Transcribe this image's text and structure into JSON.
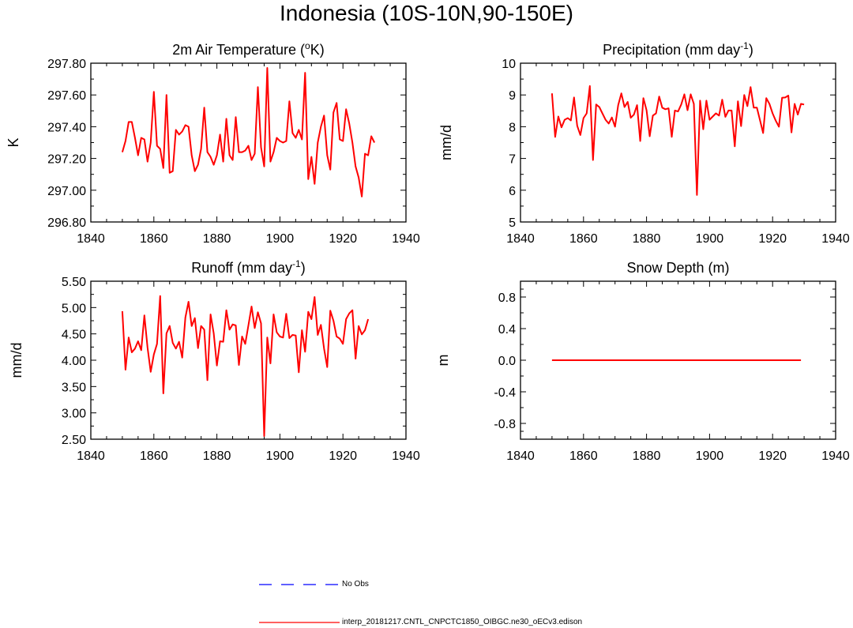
{
  "title": "Indonesia (10S-10N,90-150E)",
  "colors": {
    "model": "#ff0000",
    "obs": "#0000ff",
    "axis": "#000000"
  },
  "legend": {
    "obs_label": "No Obs",
    "model_label": "interp_20181217.CNTL_CNPCTC1850_OIBGC.ne30_oECv3.edison"
  },
  "chart_data": [
    {
      "type": "line",
      "title": "2m Air Temperature (oK)",
      "title_parts": [
        "2m Air Temperature (",
        "o",
        "K)"
      ],
      "ylabel": "K",
      "xlim": [
        1840,
        1940
      ],
      "ylim": [
        296.8,
        297.8
      ],
      "xticks": [
        1840,
        1860,
        1880,
        1900,
        1920,
        1940
      ],
      "yticks": [
        296.8,
        297.0,
        297.2,
        297.4,
        297.6,
        297.8
      ],
      "ytick_labels": [
        "296.80",
        "297.00",
        "297.20",
        "297.40",
        "297.60",
        "297.80"
      ],
      "x_start": 1850,
      "series": [
        {
          "name": "interp_20181217.CNTL_CNPCTC1850_OIBGC.ne30_oECv3.edison",
          "values": [
            297.24,
            297.31,
            297.43,
            297.43,
            297.33,
            297.22,
            297.33,
            297.32,
            297.18,
            297.3,
            297.62,
            297.28,
            297.26,
            297.14,
            297.6,
            297.11,
            297.12,
            297.38,
            297.35,
            297.37,
            297.41,
            297.4,
            297.22,
            297.12,
            297.16,
            297.26,
            297.52,
            297.24,
            297.21,
            297.16,
            297.22,
            297.35,
            297.18,
            297.45,
            297.22,
            297.19,
            297.46,
            297.24,
            297.24,
            297.25,
            297.28,
            297.19,
            297.23,
            297.65,
            297.27,
            297.15,
            297.77,
            297.18,
            297.24,
            297.33,
            297.31,
            297.3,
            297.31,
            297.56,
            297.36,
            297.33,
            297.38,
            297.32,
            297.74,
            297.07,
            297.21,
            297.04,
            297.3,
            297.4,
            297.47,
            297.22,
            297.13,
            297.49,
            297.55,
            297.32,
            297.31,
            297.51,
            297.42,
            297.3,
            297.15,
            297.08,
            296.96,
            297.23,
            297.22,
            297.34,
            297.3
          ]
        }
      ]
    },
    {
      "type": "line",
      "title": "Precipitation (mm day-1)",
      "title_parts": [
        "Precipitation (mm day",
        "-1",
        ")"
      ],
      "ylabel": "mm/d",
      "xlim": [
        1840,
        1940
      ],
      "ylim": [
        5,
        10
      ],
      "xticks": [
        1840,
        1860,
        1880,
        1900,
        1920,
        1940
      ],
      "yticks": [
        5,
        6,
        7,
        8,
        9,
        10
      ],
      "ytick_labels": [
        "5",
        "6",
        "7",
        "8",
        "9",
        "10"
      ],
      "x_start": 1850,
      "series": [
        {
          "name": "interp_20181217.CNTL_CNPCTC1850_OIBGC.ne30_oECv3.edison",
          "values": [
            9.05,
            7.68,
            8.32,
            7.98,
            8.22,
            8.27,
            8.2,
            8.92,
            8.03,
            7.74,
            8.27,
            8.42,
            9.28,
            6.95,
            8.7,
            8.62,
            8.42,
            8.22,
            8.1,
            8.29,
            8.0,
            8.68,
            9.05,
            8.62,
            8.78,
            8.28,
            8.38,
            8.68,
            7.55,
            8.9,
            8.52,
            7.7,
            8.35,
            8.42,
            8.95,
            8.6,
            8.55,
            8.58,
            7.68,
            8.51,
            8.48,
            8.7,
            9.02,
            8.52,
            9.02,
            8.72,
            5.85,
            8.82,
            7.92,
            8.82,
            8.22,
            8.32,
            8.42,
            8.35,
            8.85,
            8.31,
            8.51,
            8.51,
            7.38,
            8.8,
            8.02,
            9.0,
            8.65,
            9.25,
            8.6,
            8.6,
            8.21,
            7.8,
            8.9,
            8.72,
            8.42,
            8.19,
            8.0,
            8.91,
            8.92,
            8.98,
            7.82,
            8.72,
            8.38,
            8.72,
            8.7
          ]
        }
      ]
    },
    {
      "type": "line",
      "title": "Runoff (mm day-1)",
      "title_parts": [
        "Runoff (mm day",
        "-1",
        ")"
      ],
      "ylabel": "mm/d",
      "xlim": [
        1840,
        1940
      ],
      "ylim": [
        2.5,
        5.5
      ],
      "xticks": [
        1840,
        1860,
        1880,
        1900,
        1920,
        1940
      ],
      "yticks": [
        2.5,
        3.0,
        3.5,
        4.0,
        4.5,
        5.0,
        5.5
      ],
      "ytick_labels": [
        "2.50",
        "3.00",
        "3.50",
        "4.00",
        "4.50",
        "5.00",
        "5.50"
      ],
      "x_start": 1850,
      "series": [
        {
          "name": "interp_20181217.CNTL_CNPCTC1850_OIBGC.ne30_oECv3.edison",
          "values": [
            4.93,
            3.82,
            4.43,
            4.15,
            4.22,
            4.36,
            4.19,
            4.85,
            4.24,
            3.78,
            4.11,
            4.31,
            5.22,
            3.37,
            4.51,
            4.65,
            4.33,
            4.22,
            4.35,
            4.05,
            4.81,
            5.11,
            4.65,
            4.8,
            4.23,
            4.65,
            4.58,
            3.62,
            4.87,
            4.51,
            3.9,
            4.36,
            4.35,
            4.95,
            4.58,
            4.68,
            4.66,
            3.91,
            4.45,
            4.31,
            4.66,
            5.02,
            4.61,
            4.91,
            4.7,
            2.56,
            4.43,
            3.94,
            4.87,
            4.53,
            4.45,
            4.43,
            4.88,
            4.42,
            4.48,
            4.47,
            3.77,
            4.57,
            4.16,
            4.92,
            4.78,
            5.2,
            4.48,
            4.67,
            4.22,
            3.87,
            4.94,
            4.75,
            4.45,
            4.41,
            4.31,
            4.78,
            4.89,
            4.95,
            4.03,
            4.65,
            4.49,
            4.57,
            4.78
          ]
        }
      ]
    },
    {
      "type": "line",
      "title": "Snow Depth (m)",
      "title_parts": [
        "Snow Depth (m)",
        "",
        ""
      ],
      "ylabel": "m",
      "xlim": [
        1840,
        1940
      ],
      "ylim": [
        -1.0,
        1.0
      ],
      "xticks": [
        1840,
        1860,
        1880,
        1900,
        1920,
        1940
      ],
      "yticks": [
        -0.8,
        -0.4,
        0.0,
        0.4,
        0.8
      ],
      "ytick_labels": [
        "-0.8",
        "-0.4",
        "0.0",
        "0.4",
        "0.8"
      ],
      "x_start": 1850,
      "series": [
        {
          "name": "interp_20181217.CNTL_CNPCTC1850_OIBGC.ne30_oECv3.edison",
          "values": [
            0.0,
            0.0,
            0.0,
            0.0,
            0.0,
            0.0,
            0.0,
            0.0,
            0.0,
            0.0,
            0.0,
            0.0,
            0.0,
            0.0,
            0.0,
            0.0,
            0.0,
            0.0,
            0.0,
            0.0,
            0.0,
            0.0,
            0.0,
            0.0,
            0.0,
            0.0,
            0.0,
            0.0,
            0.0,
            0.0,
            0.0,
            0.0,
            0.0,
            0.0,
            0.0,
            0.0,
            0.0,
            0.0,
            0.0,
            0.0,
            0.0,
            0.0,
            0.0,
            0.0,
            0.0,
            0.0,
            0.0,
            0.0,
            0.0,
            0.0,
            0.0,
            0.0,
            0.0,
            0.0,
            0.0,
            0.0,
            0.0,
            0.0,
            0.0,
            0.0,
            0.0,
            0.0,
            0.0,
            0.0,
            0.0,
            0.0,
            0.0,
            0.0,
            0.0,
            0.0,
            0.0,
            0.0,
            0.0,
            0.0,
            0.0,
            0.0,
            0.0,
            0.0,
            0.0,
            0.0
          ]
        }
      ]
    }
  ]
}
